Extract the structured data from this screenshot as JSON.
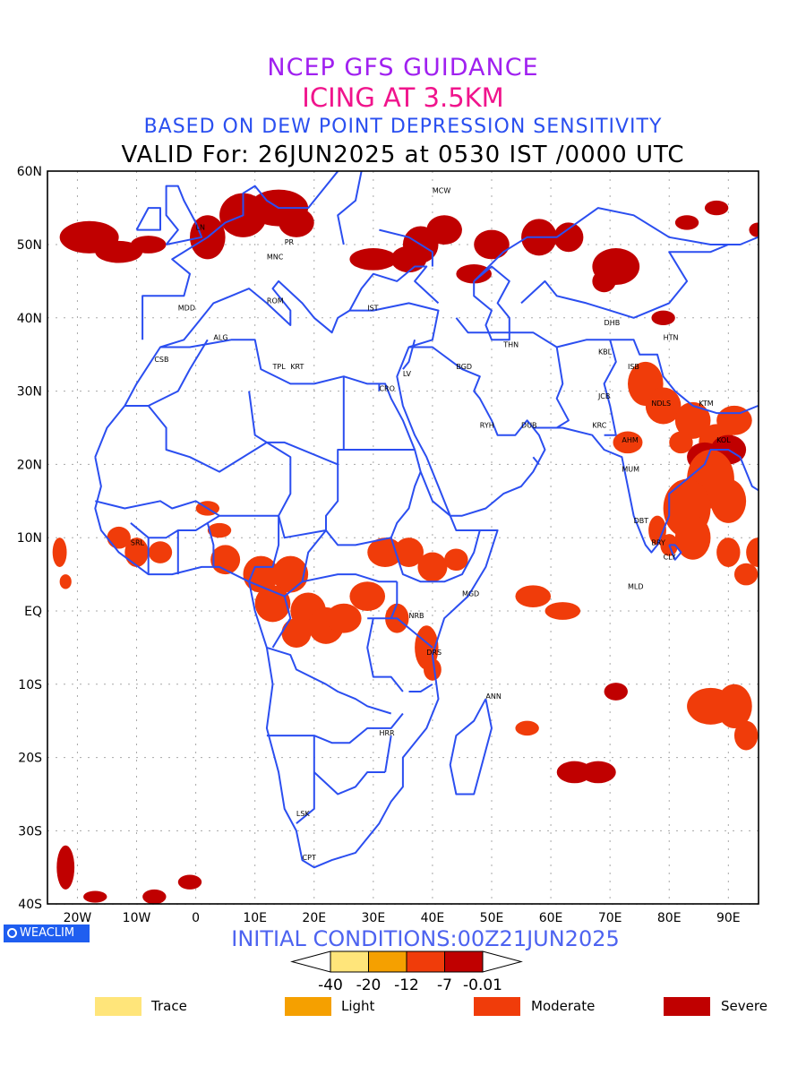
{
  "titles": {
    "line1": "NCEP GFS GUIDANCE",
    "line2": "ICING AT 3.5KM",
    "line3": "BASED ON DEW POINT DEPRESSION SENSITIVITY",
    "line4": "VALID For: 26JUN2025 at 0530 IST /0000 UTC"
  },
  "map": {
    "lat_labels": [
      "60N",
      "50N",
      "40N",
      "30N",
      "20N",
      "10N",
      "EQ",
      "10S",
      "20S",
      "30S",
      "40S"
    ],
    "lon_labels": [
      "20W",
      "10W",
      "0",
      "10E",
      "20E",
      "30E",
      "40E",
      "50E",
      "60E",
      "70E",
      "80E",
      "90E"
    ],
    "stations": [
      {
        "code": "MCW"
      },
      {
        "code": "LN"
      },
      {
        "code": "PR"
      },
      {
        "code": "MNC"
      },
      {
        "code": "ROM"
      },
      {
        "code": "MDD"
      },
      {
        "code": "IST"
      },
      {
        "code": "ALG"
      },
      {
        "code": "CSB"
      },
      {
        "code": "TPL"
      },
      {
        "code": "KRT"
      },
      {
        "code": "LV"
      },
      {
        "code": "CRO"
      },
      {
        "code": "BGD"
      },
      {
        "code": "THN"
      },
      {
        "code": "RYH"
      },
      {
        "code": "DUB"
      },
      {
        "code": "DHB"
      },
      {
        "code": "HTN"
      },
      {
        "code": "KBL"
      },
      {
        "code": "ISB"
      },
      {
        "code": "JCB"
      },
      {
        "code": "NDLS"
      },
      {
        "code": "KTM"
      },
      {
        "code": "KRC"
      },
      {
        "code": "AHM"
      },
      {
        "code": "KOL"
      },
      {
        "code": "MUM"
      },
      {
        "code": "DBT"
      },
      {
        "code": "BRY"
      },
      {
        "code": "CLY"
      },
      {
        "code": "MLD"
      },
      {
        "code": "SRL"
      },
      {
        "code": "MGD"
      },
      {
        "code": "NRB"
      },
      {
        "code": "DRS"
      },
      {
        "code": "ANN"
      },
      {
        "code": "HRR"
      },
      {
        "code": "LSK"
      },
      {
        "code": "CPT"
      }
    ]
  },
  "badge": "WEACLIM",
  "initial_conditions": "INITIAL CONDITIONS:00Z21JUN2025",
  "colorbar": {
    "labels": [
      "-40",
      "-20",
      "-12",
      "-7",
      "-0.01"
    ],
    "colors": [
      "#ffe57a",
      "#f5a000",
      "#f03c0a",
      "#c00000"
    ]
  },
  "legend": [
    {
      "label": "Trace",
      "color": "#ffe57a"
    },
    {
      "label": "Light",
      "color": "#f5a000"
    },
    {
      "label": "Moderate",
      "color": "#f03c0a"
    },
    {
      "label": "Severe",
      "color": "#c00000"
    }
  ]
}
